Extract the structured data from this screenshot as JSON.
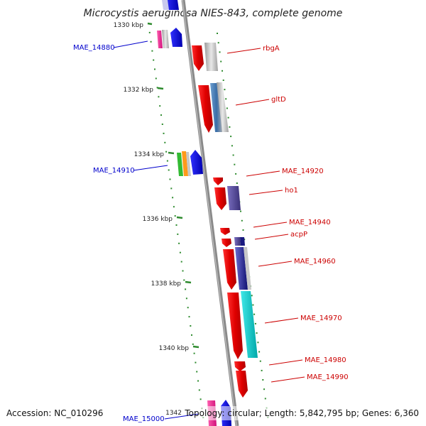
{
  "title": "Microcystis aeruginosa NIES-843, complete genome",
  "accession": "Accession: NC_010296",
  "topology": "Topology: circular; Length: 5,842,795 bp; Genes: 6,360",
  "colors": {
    "forward_label": "#cc0000",
    "reverse_label": "#0000cc",
    "tick": "#2e8b2e",
    "axis": "#888888"
  },
  "ticks": [
    {
      "label": "1330 kbp"
    },
    {
      "label": "1332 kbp"
    },
    {
      "label": "1334 kbp"
    },
    {
      "label": "1336 kbp"
    },
    {
      "label": "1338 kbp"
    },
    {
      "label": "1340 kbp"
    },
    {
      "label": "1342"
    }
  ],
  "genes": [
    {
      "name": "MAE_14880",
      "strand": "reverse"
    },
    {
      "name": "rbgA",
      "strand": "forward"
    },
    {
      "name": "gltD",
      "strand": "forward"
    },
    {
      "name": "MAE_14910",
      "strand": "reverse"
    },
    {
      "name": "MAE_14920",
      "strand": "forward"
    },
    {
      "name": "ho1",
      "strand": "forward"
    },
    {
      "name": "MAE_14940",
      "strand": "forward"
    },
    {
      "name": "acpP",
      "strand": "forward"
    },
    {
      "name": "MAE_14960",
      "strand": "forward"
    },
    {
      "name": "MAE_14970",
      "strand": "forward"
    },
    {
      "name": "MAE_14980",
      "strand": "forward"
    },
    {
      "name": "MAE_14990",
      "strand": "forward"
    },
    {
      "name": "MAE_15000",
      "strand": "reverse"
    }
  ]
}
